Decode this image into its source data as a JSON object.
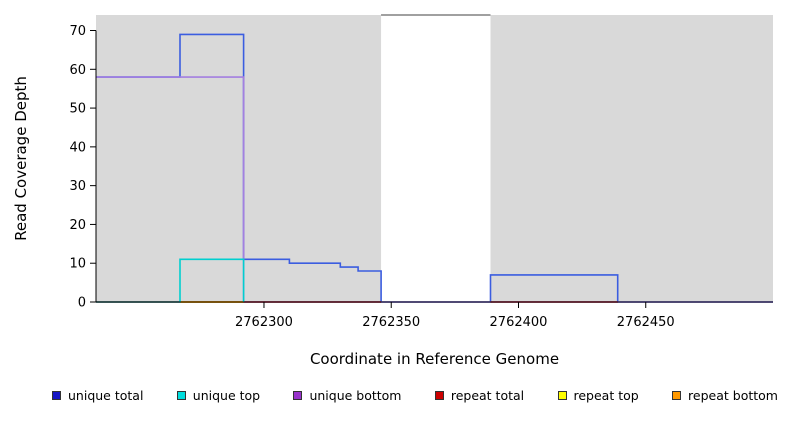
{
  "chart_data": {
    "type": "line",
    "step": true,
    "title": "",
    "xlabel": "Coordinate in Reference Genome",
    "ylabel": "Read Coverage Depth",
    "xlim": [
      2762234,
      2762500
    ],
    "ylim": [
      0,
      74
    ],
    "xticks": [
      2762300,
      2762350,
      2762400,
      2762450
    ],
    "yticks": [
      0,
      10,
      20,
      30,
      40,
      50,
      60,
      70
    ],
    "plot_bg": "#d9d9d9",
    "grid": false,
    "legend_position": "bottom",
    "gap_region": {
      "x0": 2762346,
      "x1": 2762389,
      "color": "#ffffff",
      "border": "#808080"
    },
    "draw_order": [
      0,
      2,
      3,
      4,
      5,
      1
    ],
    "series": [
      {
        "name": "unique total",
        "color": "#3b5de0",
        "segments": [
          [
            [
              2762234,
              58
            ],
            [
              2762267,
              58
            ],
            [
              2762267,
              69
            ],
            [
              2762292,
              69
            ],
            [
              2762292,
              11
            ],
            [
              2762310,
              11
            ],
            [
              2762310,
              10
            ],
            [
              2762330,
              10
            ],
            [
              2762330,
              9
            ],
            [
              2762337,
              9
            ],
            [
              2762337,
              8
            ],
            [
              2762346,
              8
            ],
            [
              2762346,
              0
            ],
            [
              2762389,
              0
            ],
            [
              2762389,
              7
            ],
            [
              2762439,
              7
            ],
            [
              2762439,
              0
            ],
            [
              2762500,
              0
            ]
          ]
        ]
      },
      {
        "name": "unique top",
        "color": "#00cfcf",
        "segments": [
          [
            [
              2762234,
              0
            ],
            [
              2762267,
              0
            ],
            [
              2762267,
              11
            ],
            [
              2762292,
              11
            ],
            [
              2762292,
              0
            ]
          ]
        ]
      },
      {
        "name": "unique bottom",
        "color": "#a47fe0",
        "segments": [
          [
            [
              2762234,
              58
            ],
            [
              2762292,
              58
            ],
            [
              2762292,
              0
            ],
            [
              2762500,
              0
            ]
          ]
        ]
      },
      {
        "name": "repeat total",
        "color": "#c40000",
        "segments": [
          [
            [
              2762234,
              0
            ],
            [
              2762346,
              0
            ]
          ],
          [
            [
              2762389,
              0
            ],
            [
              2762439,
              0
            ]
          ]
        ]
      },
      {
        "name": "repeat top",
        "color": "#f2f200",
        "segments": [
          [
            [
              2762267,
              0
            ],
            [
              2762292,
              0
            ]
          ]
        ]
      },
      {
        "name": "repeat bottom",
        "color": "#f59300",
        "segments": [
          [
            [
              2762267,
              0
            ],
            [
              2762292,
              0
            ]
          ]
        ]
      }
    ]
  },
  "legend": {
    "items": [
      {
        "label": "unique total",
        "color": "#1515c4"
      },
      {
        "label": "unique top",
        "color": "#00dede"
      },
      {
        "label": "unique bottom",
        "color": "#9933cc"
      },
      {
        "label": "repeat total",
        "color": "#cc0000"
      },
      {
        "label": "repeat top",
        "color": "#ffff00"
      },
      {
        "label": "repeat bottom",
        "color": "#ff9900"
      }
    ]
  }
}
